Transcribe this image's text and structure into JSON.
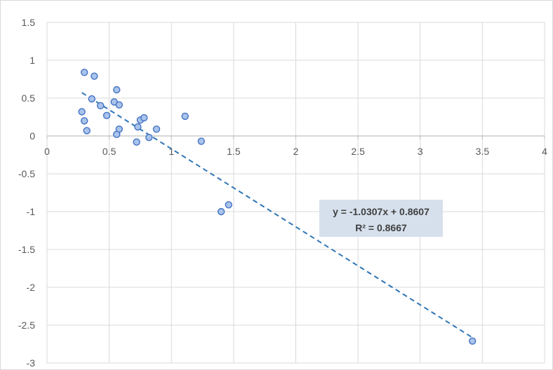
{
  "chart_data": {
    "type": "scatter",
    "title": "",
    "xlabel": "",
    "ylabel": "",
    "xlim": [
      0,
      4
    ],
    "ylim": [
      -3,
      1.5
    ],
    "x_ticks": [
      0,
      0.5,
      1,
      1.5,
      2,
      2.5,
      3,
      3.5,
      4
    ],
    "y_ticks": [
      1.5,
      1,
      0.5,
      0,
      -0.5,
      -1,
      -1.5,
      -2,
      -2.5,
      -3
    ],
    "x_tick_labels": [
      "0",
      "0.5",
      "1",
      "1.5",
      "2",
      "2.5",
      "3",
      "3.5",
      "4"
    ],
    "y_tick_labels": [
      "1.5",
      "1",
      "0.5",
      "0",
      "-0.5",
      "-1",
      "-1.5",
      "-2",
      "-2.5",
      "-3"
    ],
    "grid": true,
    "legend": false,
    "series": [
      {
        "marker_color": "#a9c4eb",
        "marker_edge_color": "#4472c4",
        "points": [
          {
            "x": 0.3,
            "y": 0.84
          },
          {
            "x": 0.38,
            "y": 0.79
          },
          {
            "x": 0.56,
            "y": 0.61
          },
          {
            "x": 0.36,
            "y": 0.49
          },
          {
            "x": 0.54,
            "y": 0.45
          },
          {
            "x": 0.43,
            "y": 0.4
          },
          {
            "x": 0.58,
            "y": 0.41
          },
          {
            "x": 0.28,
            "y": 0.32
          },
          {
            "x": 0.48,
            "y": 0.27
          },
          {
            "x": 0.3,
            "y": 0.2
          },
          {
            "x": 0.32,
            "y": 0.07
          },
          {
            "x": 0.58,
            "y": 0.09
          },
          {
            "x": 0.56,
            "y": 0.02
          },
          {
            "x": 0.72,
            "y": -0.08
          },
          {
            "x": 0.73,
            "y": 0.12
          },
          {
            "x": 0.75,
            "y": 0.21
          },
          {
            "x": 0.78,
            "y": 0.24
          },
          {
            "x": 0.82,
            "y": -0.02
          },
          {
            "x": 0.88,
            "y": 0.09
          },
          {
            "x": 1.11,
            "y": 0.26
          },
          {
            "x": 1.24,
            "y": -0.07
          },
          {
            "x": 1.4,
            "y": -1.0
          },
          {
            "x": 1.46,
            "y": -0.91
          },
          {
            "x": 3.42,
            "y": -2.71
          }
        ]
      }
    ],
    "trendline": {
      "type": "linear",
      "slope": -1.0307,
      "intercept": 0.8607,
      "x_range": [
        0.28,
        3.42
      ],
      "color": "#2e75b6",
      "style": "dashed",
      "equation_label": "y = -1.0307x + 0.8607",
      "r2_label": "R² = 0.8667",
      "label_background": "#d6e0ec"
    },
    "colors": {
      "grid": "#d9d9d9",
      "axis": "#bfbfbf",
      "tick_text": "#595959"
    }
  }
}
